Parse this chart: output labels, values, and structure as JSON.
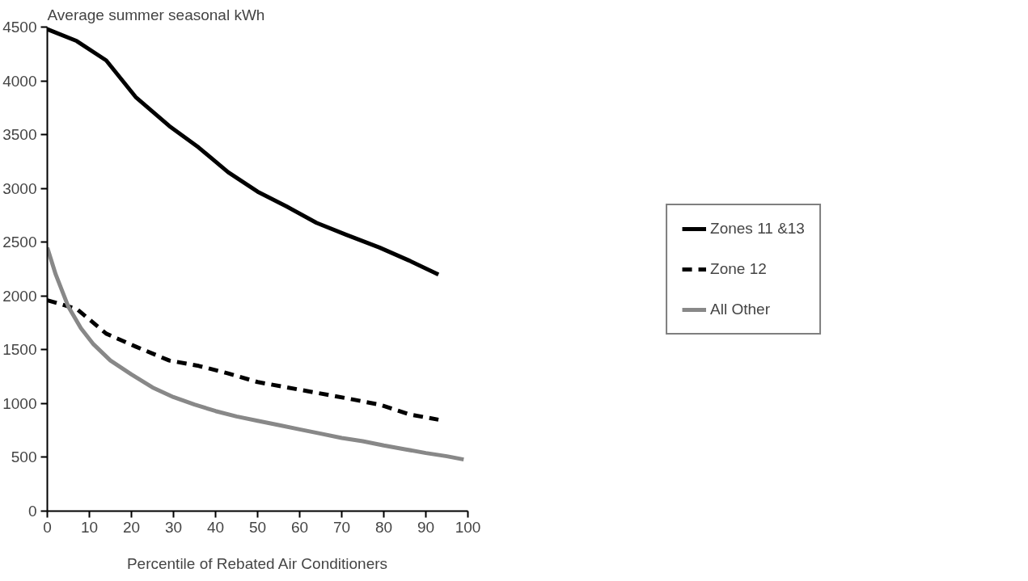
{
  "chart_data": {
    "type": "line",
    "ylabel": "Average summer seasonal kWh",
    "xlabel": "Percentile of Rebated Air Conditioners",
    "xlim": [
      0,
      100
    ],
    "xticks": [
      0,
      10,
      20,
      30,
      40,
      50,
      60,
      70,
      80,
      90,
      100
    ],
    "ylim": [
      0,
      4500
    ],
    "yticks": [
      0,
      500,
      1000,
      1500,
      2000,
      2500,
      3000,
      3500,
      4000,
      4500
    ],
    "grid": false,
    "legend": "right",
    "marker": "none",
    "series": [
      {
        "name": "Zones 11 &13",
        "color": "#000000",
        "line_style": "solid",
        "x": [
          0,
          7,
          14,
          21,
          29,
          36,
          43,
          50,
          57,
          64,
          71,
          79,
          86,
          93
        ],
        "values": [
          4480,
          4370,
          4190,
          3850,
          3580,
          3380,
          3150,
          2970,
          2830,
          2680,
          2570,
          2450,
          2330,
          2200
        ]
      },
      {
        "name": "Zone 12",
        "color": "#000000",
        "line_style": "dashed",
        "x": [
          0,
          7,
          14,
          21,
          29,
          36,
          43,
          50,
          57,
          64,
          71,
          79,
          86,
          93
        ],
        "values": [
          1960,
          1880,
          1650,
          1530,
          1400,
          1350,
          1280,
          1200,
          1150,
          1100,
          1050,
          990,
          900,
          850
        ]
      },
      {
        "name": "All Other",
        "color": "#888888",
        "line_style": "solid",
        "x": [
          0,
          2,
          5,
          8,
          11,
          15,
          20,
          25,
          30,
          35,
          40,
          45,
          50,
          55,
          60,
          65,
          70,
          75,
          80,
          85,
          90,
          95,
          99
        ],
        "values": [
          2450,
          2200,
          1900,
          1700,
          1550,
          1400,
          1270,
          1150,
          1060,
          990,
          930,
          880,
          840,
          800,
          760,
          720,
          680,
          650,
          610,
          575,
          540,
          510,
          480
        ]
      }
    ]
  }
}
